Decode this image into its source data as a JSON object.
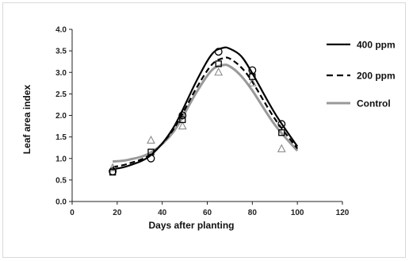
{
  "chart_data": {
    "type": "line",
    "title": "",
    "xlabel": "Days after planting",
    "ylabel": "Leaf area index",
    "xlim": [
      0,
      120
    ],
    "ylim": [
      0.0,
      4.0
    ],
    "x_ticks": [
      "0",
      "20",
      "40",
      "60",
      "80",
      "100",
      "120"
    ],
    "y_ticks": [
      "0.0",
      "0.5",
      "1.0",
      "1.5",
      "2.0",
      "2.5",
      "3.0",
      "3.5",
      "4.0"
    ],
    "grid": false,
    "legend_position": "right",
    "series": [
      {
        "name": "400 ppm",
        "color": "#000000",
        "line_style": "solid",
        "marker": "circle",
        "points": {
          "x": [
            18,
            35,
            49,
            65,
            80,
            93
          ],
          "y": [
            0.7,
            1.0,
            2.0,
            3.48,
            3.05,
            1.8
          ]
        },
        "curve": {
          "x": [
            18,
            25,
            35,
            45,
            55,
            62,
            67,
            70,
            75,
            80,
            90,
            100
          ],
          "y": [
            0.75,
            0.83,
            1.08,
            1.72,
            2.78,
            3.42,
            3.57,
            3.55,
            3.38,
            2.98,
            2.05,
            1.28
          ]
        }
      },
      {
        "name": "200 ppm",
        "color": "#000000",
        "line_style": "dashed",
        "marker": "square",
        "points": {
          "x": [
            18,
            35,
            49,
            65,
            80,
            93
          ],
          "y": [
            0.68,
            1.15,
            1.9,
            3.2,
            2.9,
            1.6
          ]
        },
        "curve": {
          "x": [
            18,
            25,
            35,
            45,
            55,
            62,
            67,
            70,
            75,
            80,
            90,
            100
          ],
          "y": [
            0.8,
            0.88,
            1.1,
            1.68,
            2.62,
            3.18,
            3.33,
            3.32,
            3.12,
            2.78,
            1.92,
            1.23
          ]
        }
      },
      {
        "name": "Control",
        "color": "#999999",
        "line_style": "solid",
        "marker": "triangle",
        "points": {
          "x": [
            18,
            35,
            49,
            65,
            80,
            93
          ],
          "y": [
            0.78,
            1.42,
            1.75,
            3.0,
            2.75,
            1.22
          ]
        },
        "curve": {
          "x": [
            18,
            25,
            35,
            45,
            55,
            62,
            67,
            70,
            75,
            80,
            90,
            100
          ],
          "y": [
            0.93,
            0.97,
            1.14,
            1.62,
            2.52,
            3.05,
            3.17,
            3.14,
            2.92,
            2.58,
            1.78,
            1.18
          ]
        }
      }
    ]
  }
}
